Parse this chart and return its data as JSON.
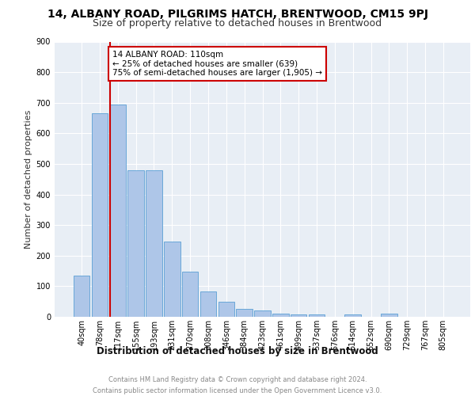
{
  "title": "14, ALBANY ROAD, PILGRIMS HATCH, BRENTWOOD, CM15 9PJ",
  "subtitle": "Size of property relative to detached houses in Brentwood",
  "xlabel": "Distribution of detached houses by size in Brentwood",
  "ylabel": "Number of detached properties",
  "footer_line1": "Contains HM Land Registry data © Crown copyright and database right 2024.",
  "footer_line2": "Contains public sector information licensed under the Open Government Licence v3.0.",
  "categories": [
    "40sqm",
    "78sqm",
    "117sqm",
    "155sqm",
    "193sqm",
    "231sqm",
    "270sqm",
    "308sqm",
    "346sqm",
    "384sqm",
    "423sqm",
    "461sqm",
    "499sqm",
    "537sqm",
    "576sqm",
    "614sqm",
    "652sqm",
    "690sqm",
    "729sqm",
    "767sqm",
    "805sqm"
  ],
  "values": [
    135,
    665,
    695,
    480,
    480,
    245,
    148,
    83,
    48,
    27,
    20,
    10,
    8,
    8,
    0,
    8,
    0,
    10,
    0,
    0,
    0
  ],
  "bar_color": "#aec6e8",
  "bar_edge_color": "#5a9fd4",
  "highlight_line_color": "#cc0000",
  "annotation_text_line1": "14 ALBANY ROAD: 110sqm",
  "annotation_text_line2": "← 25% of detached houses are smaller (639)",
  "annotation_text_line3": "75% of semi-detached houses are larger (1,905) →",
  "annotation_box_color": "#ffffff",
  "annotation_box_edge_color": "#cc0000",
  "ylim": [
    0,
    900
  ],
  "yticks": [
    0,
    100,
    200,
    300,
    400,
    500,
    600,
    700,
    800,
    900
  ],
  "plot_bg_color": "#e8eef5",
  "grid_color": "#ffffff",
  "title_fontsize": 10,
  "subtitle_fontsize": 9,
  "xlabel_fontsize": 8.5,
  "ylabel_fontsize": 8,
  "tick_fontsize": 7,
  "annotation_fontsize": 7.5,
  "footer_fontsize": 6
}
